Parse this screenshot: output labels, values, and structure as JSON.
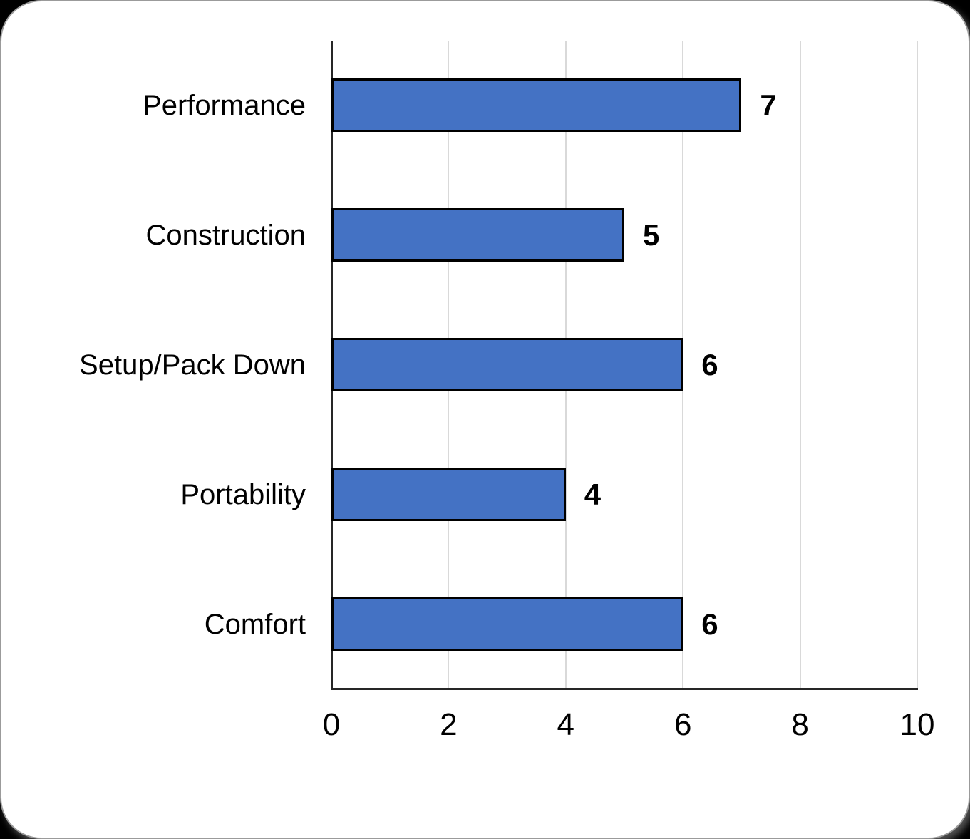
{
  "chart_data": {
    "type": "bar",
    "orientation": "horizontal",
    "title": "",
    "xlabel": "",
    "ylabel": "",
    "categories": [
      "Performance",
      "Construction",
      "Setup/Pack Down",
      "Portability",
      "Comfort"
    ],
    "values": [
      7,
      5,
      6,
      4,
      6
    ],
    "data_labels": [
      "7",
      "5",
      "6",
      "4",
      "6"
    ],
    "xlim": [
      0,
      10
    ],
    "x_ticks": [
      0,
      2,
      4,
      6,
      8,
      10
    ],
    "grid": "vertical gridlines at major ticks",
    "legend": "none",
    "colors": {
      "bar_fill": "#4472C4",
      "bar_border": "#000000",
      "gridline": "#D9D9D9",
      "axis_line": "#262626",
      "text": "#000000",
      "card_background": "#FFFFFF",
      "page_background": "#000000"
    }
  }
}
